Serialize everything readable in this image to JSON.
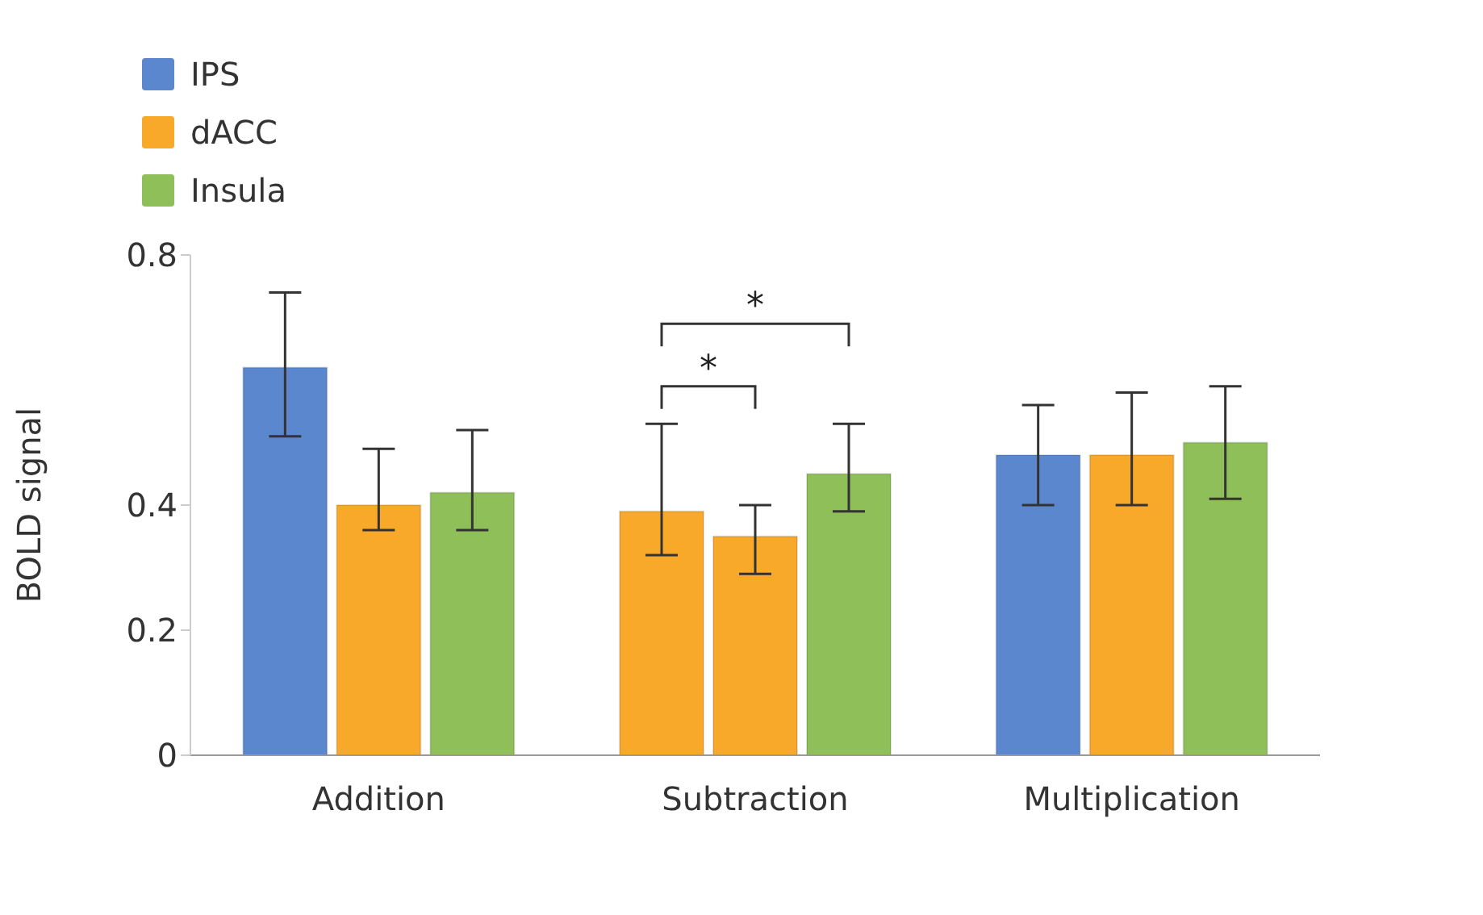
{
  "chart_data": {
    "type": "bar",
    "ylabel": "BOLD signal",
    "categories": [
      "Addition",
      "Subtraction",
      "Multiplication"
    ],
    "series": [
      {
        "name": "IPS",
        "color": "#5b87cf",
        "colors": [
          "#5b87cf",
          "#f8a92a",
          "#5b87cf"
        ],
        "values": [
          0.62,
          0.39,
          0.48
        ],
        "errors": [
          [
            0.51,
            0.74
          ],
          [
            0.32,
            0.53
          ],
          [
            0.4,
            0.56
          ]
        ]
      },
      {
        "name": "dACC",
        "color": "#f8a92a",
        "values": [
          0.4,
          0.35,
          0.48
        ],
        "errors": [
          [
            0.36,
            0.49
          ],
          [
            0.29,
            0.4
          ],
          [
            0.4,
            0.58
          ]
        ]
      },
      {
        "name": "Insula",
        "color": "#8fbf58",
        "values": [
          0.42,
          0.45,
          0.5
        ],
        "errors": [
          [
            0.36,
            0.52
          ],
          [
            0.39,
            0.53
          ],
          [
            0.41,
            0.59
          ]
        ]
      }
    ],
    "ylim": [
      0,
      0.8
    ],
    "yticks": [
      0,
      0.2,
      0.4,
      0.8
    ],
    "grid": false,
    "legend": "top left",
    "annotations": [
      "*",
      "*"
    ]
  }
}
